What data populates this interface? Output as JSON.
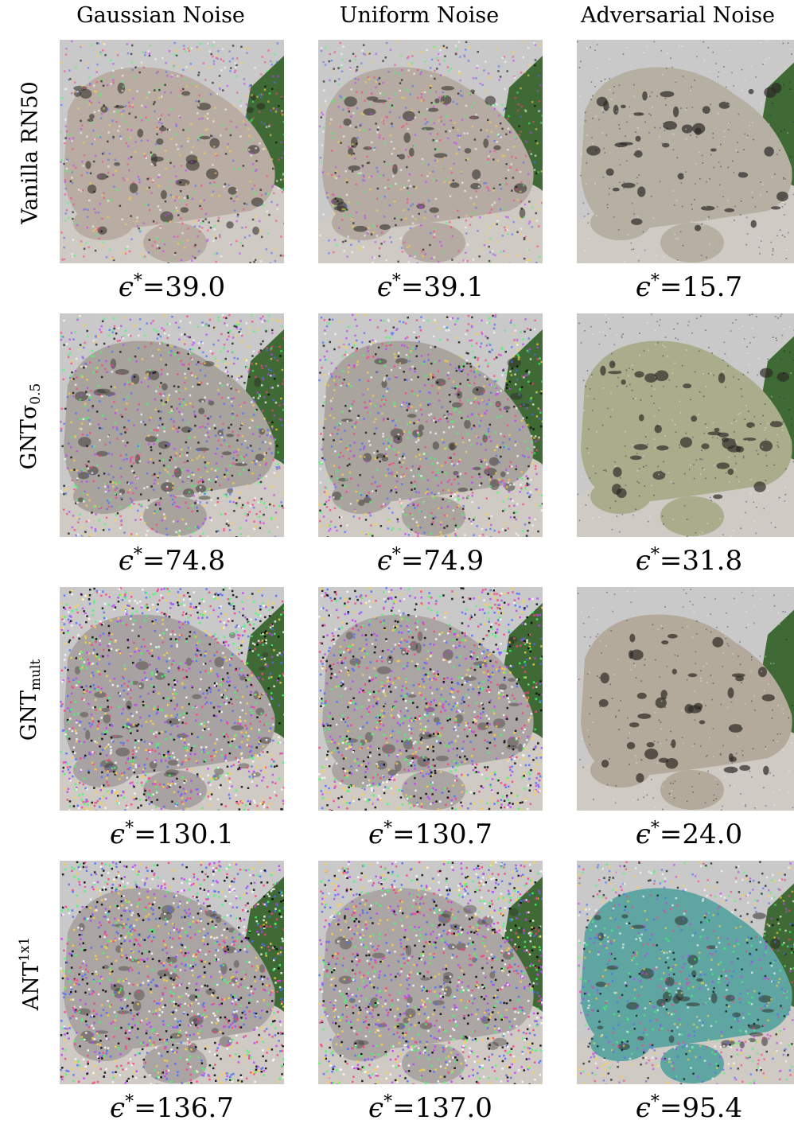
{
  "columns": [
    "Gaussian Noise",
    "Uniform Noise",
    "Adversarial Noise"
  ],
  "rows": [
    {
      "label_main": "Vanilla RN50",
      "label_sub": "",
      "label_sup": "",
      "epsilons": [
        "39.0",
        "39.1",
        "15.7"
      ],
      "tints": [
        "#b9ada3",
        "#b6aba3",
        "#b6b0a3"
      ],
      "noise_levels": [
        0.45,
        0.45,
        0.12
      ]
    },
    {
      "label_main": "GNTσ",
      "label_sub": "0.5",
      "label_sup": "",
      "epsilons": [
        "74.8",
        "74.9",
        "31.8"
      ],
      "tints": [
        "#a9a39e",
        "#aaa49f",
        "#a9ad8c"
      ],
      "noise_levels": [
        0.7,
        0.7,
        0.15
      ]
    },
    {
      "label_main": "GNT",
      "label_sub": "mult",
      "label_sup": "",
      "epsilons": [
        "130.1",
        "130.7",
        "24.0"
      ],
      "tints": [
        "#a8a3a2",
        "#aaa5a3",
        "#b3aa9c"
      ],
      "noise_levels": [
        0.95,
        0.95,
        0.1
      ]
    },
    {
      "label_main": "ANT",
      "label_sub": "",
      "label_sup": "1x1",
      "epsilons": [
        "136.7",
        "137.0",
        "95.4"
      ],
      "tints": [
        "#aaa4a3",
        "#aba6a4",
        "#5fa6a2"
      ],
      "noise_levels": [
        0.97,
        0.97,
        0.55
      ]
    }
  ],
  "epsilon_prefix": "ϵ",
  "epsilon_star": "*",
  "epsilon_equals": "=",
  "colors": {
    "background": "#ffffff",
    "text": "#000000",
    "foliage": "#3f6a35",
    "sky": "#c9c9c9",
    "leopard_spots": "#2e2a26"
  },
  "image_subject": "snow-leopard-photo"
}
